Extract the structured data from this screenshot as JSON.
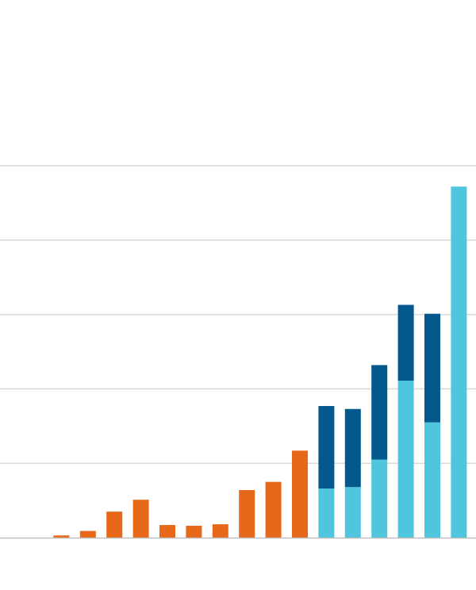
{
  "chart_data": {
    "type": "bar",
    "stacked": true,
    "grid": true,
    "ylim": [
      0,
      500
    ],
    "gridlines": [
      100,
      200,
      300,
      400,
      500
    ],
    "bars": [
      {
        "color": "#e8681a",
        "segments": [
          0
        ]
      },
      {
        "color": "#e8681a",
        "segments": [
          3
        ]
      },
      {
        "color": "#e8681a",
        "segments": [
          9
        ]
      },
      {
        "color": "#e8681a",
        "segments": [
          35
        ]
      },
      {
        "color": "#e8681a",
        "segments": [
          51
        ]
      },
      {
        "color": "#e8681a",
        "segments": [
          17
        ]
      },
      {
        "color": "#e8681a",
        "segments": [
          16
        ]
      },
      {
        "color": "#e8681a",
        "segments": [
          18
        ]
      },
      {
        "color": "#e8681a",
        "segments": [
          64
        ]
      },
      {
        "color": "#e8681a",
        "segments": [
          75
        ]
      },
      {
        "color": "#e8681a",
        "segments": [
          117
        ]
      },
      {
        "colors": [
          "#4fc6de",
          "#03588c"
        ],
        "segments": [
          66,
          111
        ]
      },
      {
        "colors": [
          "#4fc6de",
          "#03588c"
        ],
        "segments": [
          68,
          105
        ]
      },
      {
        "colors": [
          "#4fc6de",
          "#03588c"
        ],
        "segments": [
          105,
          127
        ]
      },
      {
        "colors": [
          "#4fc6de",
          "#03588c"
        ],
        "segments": [
          211,
          102
        ]
      },
      {
        "colors": [
          "#4fc6de",
          "#03588c"
        ],
        "segments": [
          155,
          146
        ]
      },
      {
        "colors": [
          "#4fc6de"
        ],
        "segments": [
          472
        ]
      }
    ],
    "colors": {
      "orange": "#e8681a",
      "light_blue": "#4fc6de",
      "dark_blue": "#03588c",
      "grid": "#d9d9d9",
      "baseline": "#bfbfbf"
    }
  }
}
